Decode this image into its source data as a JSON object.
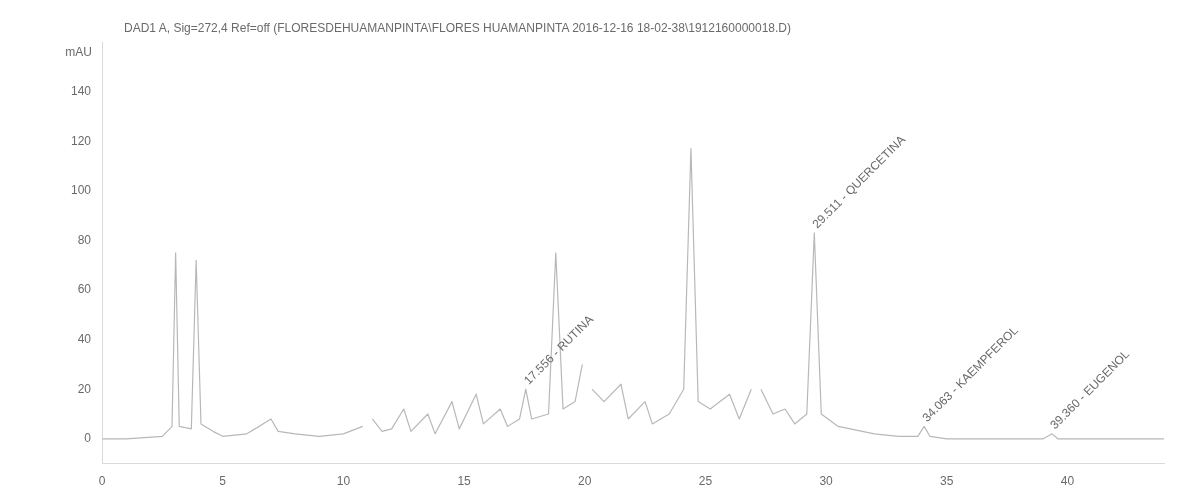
{
  "chart_data": {
    "type": "line",
    "title": "DAD1 A, Sig=272,4 Ref=off (FLORESDEHUAMANPINTA\\FLORES HUAMANPINTA 2016-12-16 18-02-38\\1912160000018.D)",
    "ylabel": "mAU",
    "color": "#b8b8b8",
    "x": [
      0,
      1,
      2.5,
      2.9,
      3.05,
      3.2,
      3.7,
      3.9,
      4.1,
      4.6,
      5,
      6,
      7,
      7.3,
      8,
      9,
      10,
      10.8,
      11.0,
      11.2,
      11.6,
      12,
      12.5,
      12.8,
      13.5,
      13.8,
      14.5,
      14.8,
      15.5,
      15.8,
      16.5,
      16.8,
      17.3,
      17.556,
      17.8,
      18.5,
      18.8,
      19.1,
      19.6,
      19.9,
      20.1,
      20.3,
      20.8,
      21.5,
      21.8,
      22.5,
      22.8,
      23.5,
      24.1,
      24.4,
      24.7,
      25.2,
      26,
      26.4,
      26.9,
      27.1,
      27.3,
      27.8,
      28.3,
      28.7,
      29.2,
      29.511,
      29.8,
      30.5,
      31,
      32,
      33,
      33.8,
      34.063,
      34.3,
      35,
      37,
      39,
      39.36,
      39.6,
      42,
      44
    ],
    "values": [
      0,
      0,
      1,
      5,
      75,
      5,
      4,
      72,
      6,
      3,
      1,
      2,
      8,
      3,
      2,
      1,
      2,
      5,
      null,
      8,
      3,
      4,
      12,
      3,
      10,
      2,
      15,
      4,
      18,
      6,
      12,
      5,
      8,
      20,
      8,
      10,
      75,
      12,
      15,
      30,
      null,
      20,
      15,
      22,
      8,
      15,
      6,
      10,
      20,
      117,
      15,
      12,
      18,
      8,
      20,
      null,
      20,
      10,
      12,
      6,
      10,
      83,
      10,
      5,
      4,
      2,
      1,
      1,
      5,
      1,
      0,
      0,
      0,
      2,
      0,
      0,
      0
    ],
    "xlim": [
      0,
      44
    ],
    "xticks": [
      0,
      5,
      10,
      15,
      20,
      25,
      30,
      35,
      40
    ],
    "ylim": [
      -10,
      160
    ],
    "yticks": [
      0,
      20,
      40,
      60,
      80,
      100,
      120,
      140
    ],
    "grid": false,
    "legend": false,
    "marker": "none",
    "line_style": "solid",
    "annotations": [
      {
        "text": "17.556 - RUTINA",
        "x": 17.556,
        "y": 20
      },
      {
        "text": "29.511 - QUERCETINA",
        "x": 29.511,
        "y": 83
      },
      {
        "text": "34.063 - KAEMPFEROL",
        "x": 34.063,
        "y": 5
      },
      {
        "text": "39.360 - EUGENOL",
        "x": 39.36,
        "y": 2
      }
    ]
  }
}
